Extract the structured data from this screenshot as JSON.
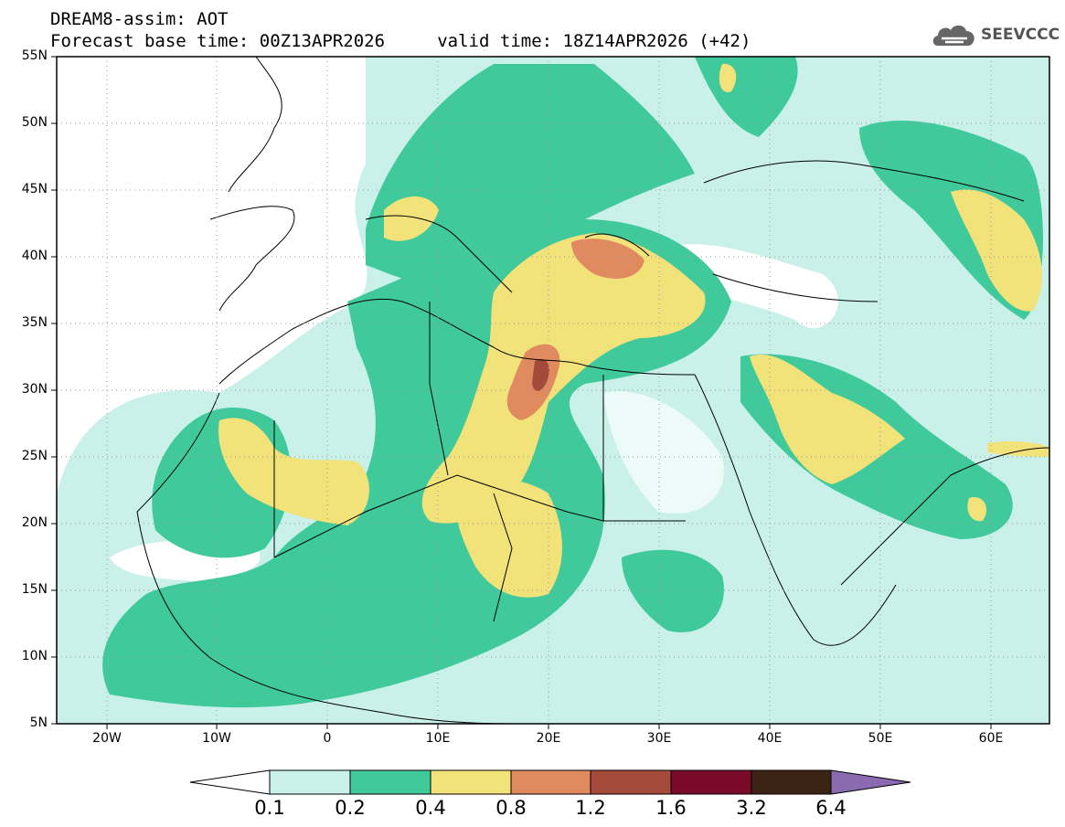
{
  "header": {
    "line1": "DREAM8-assim: AOT",
    "line2": "Forecast base time: 00Z13APR2026     valid time: 18Z14APR2026 (+42)"
  },
  "logo": {
    "text": "SEEVCCC",
    "icon": "cloud-icon"
  },
  "map": {
    "lat_labels": [
      "55N",
      "50N",
      "45N",
      "40N",
      "35N",
      "30N",
      "25N",
      "20N",
      "15N",
      "10N",
      "5N"
    ],
    "lon_labels": [
      "20W",
      "10W",
      "0",
      "10E",
      "20E",
      "30E",
      "40E",
      "50E",
      "60E"
    ]
  },
  "colorbar": {
    "labels": [
      "0.1",
      "0.2",
      "0.4",
      "0.8",
      "1.2",
      "1.6",
      "3.2",
      "6.4"
    ],
    "colors": [
      "#ffffff",
      "#c9f1ea",
      "#40c99a",
      "#f2e27a",
      "#e08a60",
      "#a44a3a",
      "#7a0a2a",
      "#3b2414",
      "#8a6ab0"
    ]
  }
}
